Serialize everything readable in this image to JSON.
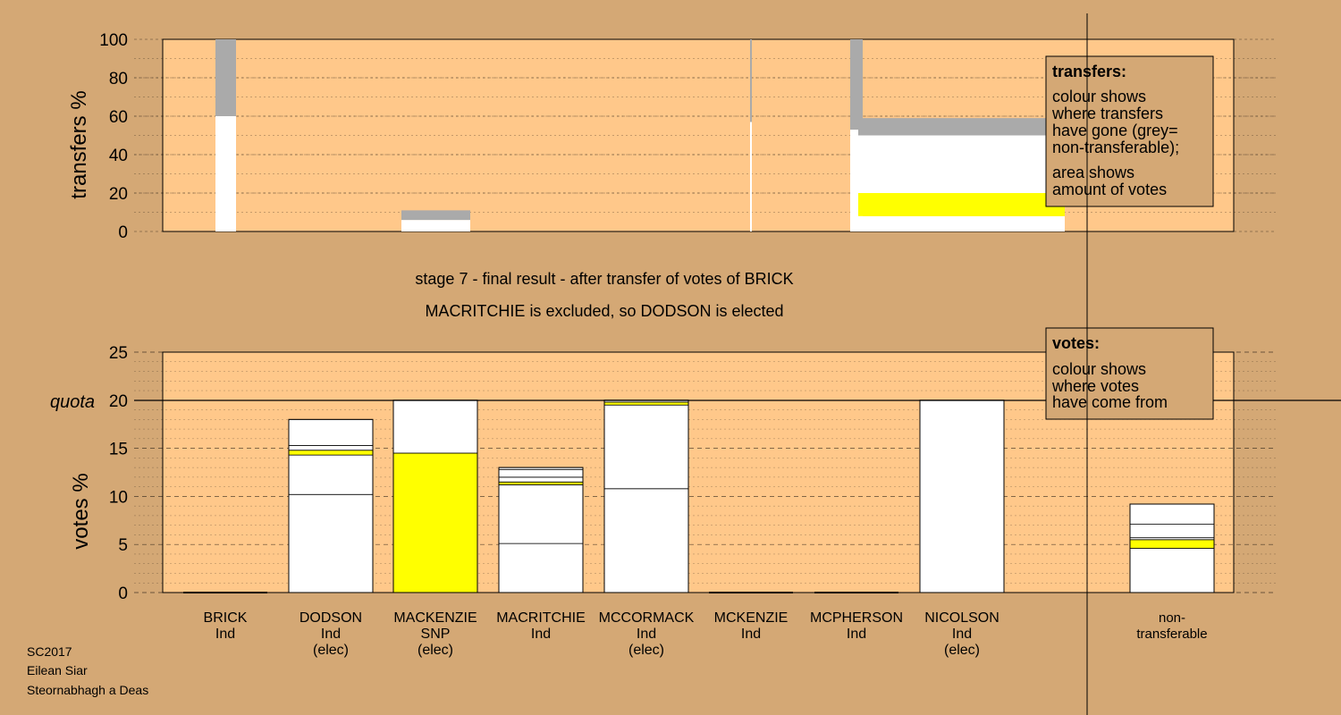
{
  "chart_data": [
    {
      "type": "bar",
      "panel": "transfers",
      "ylabel": "transfers %",
      "ylim": [
        0,
        100
      ],
      "yticks": [
        0,
        20,
        40,
        60,
        80,
        100
      ],
      "flows": [
        {
          "from": "BRICK",
          "to": "MCKENZIE",
          "direction": "out",
          "values": [
            [
              0,
              60,
              "white"
            ],
            [
              60,
              100,
              "grey"
            ]
          ]
        },
        {
          "from": "BRICK",
          "to": "MCKENZIE",
          "direction": "in",
          "values": [
            [
              0,
              6,
              "white"
            ],
            [
              6,
              11,
              "grey"
            ]
          ]
        },
        {
          "from": "MCPHERSON",
          "to": "MCPHERSON",
          "direction": "out",
          "values": [
            [
              0,
              57,
              "white"
            ],
            [
              57,
              100,
              "grey"
            ]
          ]
        },
        {
          "from": "NICOLSON",
          "to": "NICOLSON",
          "direction": "out",
          "values": [
            [
              0,
              53,
              "white"
            ],
            [
              53,
              100,
              "grey"
            ]
          ]
        },
        {
          "from": "NICOLSON",
          "to": "non-transferable",
          "direction": "in",
          "values": [
            [
              0,
              8,
              "white"
            ],
            [
              8,
              20,
              "yellow"
            ],
            [
              20,
              50,
              "white"
            ],
            [
              50,
              59,
              "grey"
            ]
          ]
        }
      ],
      "legend": {
        "title": "transfers:",
        "lines": [
          "colour shows",
          "where transfers",
          "have gone (grey=",
          "non-transferable);",
          "area shows",
          "amount of votes"
        ]
      }
    },
    {
      "type": "bar",
      "panel": "votes",
      "ylabel": "votes %",
      "ylim": [
        0,
        25
      ],
      "yticks": [
        0,
        5,
        10,
        15,
        20,
        25
      ],
      "quota": {
        "label": "quota",
        "value": 20
      },
      "categories": [
        {
          "name": "BRICK",
          "party": "Ind",
          "status": ""
        },
        {
          "name": "DODSON",
          "party": "Ind",
          "status": "(elec)"
        },
        {
          "name": "MACKENZIE",
          "party": "SNP",
          "status": "(elec)"
        },
        {
          "name": "MACRITCHIE",
          "party": "Ind",
          "status": ""
        },
        {
          "name": "MCCORMACK",
          "party": "Ind",
          "status": "(elec)"
        },
        {
          "name": "MCKENZIE",
          "party": "Ind",
          "status": ""
        },
        {
          "name": "MCPHERSON",
          "party": "Ind",
          "status": ""
        },
        {
          "name": "NICOLSON",
          "party": "Ind",
          "status": "(elec)"
        },
        {
          "name": "non-",
          "party": "transferable",
          "status": ""
        }
      ],
      "stacks": [
        [],
        [
          [
            0,
            10.2,
            "white"
          ],
          [
            10.2,
            14.3,
            "white"
          ],
          [
            14.3,
            14.8,
            "yellow"
          ],
          [
            14.8,
            15.3,
            "white"
          ],
          [
            15.3,
            18.0,
            "white"
          ]
        ],
        [
          [
            0,
            14.5,
            "yellow"
          ],
          [
            14.5,
            20.0,
            "white"
          ]
        ],
        [
          [
            0,
            5.1,
            "white"
          ],
          [
            5.1,
            11.2,
            "white"
          ],
          [
            11.2,
            11.5,
            "yellow"
          ],
          [
            11.5,
            12.0,
            "white"
          ],
          [
            12.0,
            12.8,
            "white"
          ],
          [
            12.8,
            13.0,
            "white"
          ]
        ],
        [
          [
            0,
            10.8,
            "white"
          ],
          [
            10.8,
            19.5,
            "white"
          ],
          [
            19.5,
            19.8,
            "yellow"
          ],
          [
            19.8,
            20.0,
            "white"
          ]
        ],
        [],
        [],
        [
          [
            0,
            20.0,
            "white"
          ]
        ],
        [
          [
            0,
            4.6,
            "white"
          ],
          [
            4.6,
            5.5,
            "yellow"
          ],
          [
            5.5,
            5.7,
            "white"
          ],
          [
            5.7,
            7.1,
            "white"
          ],
          [
            7.1,
            9.2,
            "white"
          ]
        ]
      ],
      "legend": {
        "title": "votes:",
        "lines": [
          "colour shows",
          "where votes",
          "have come from"
        ]
      }
    }
  ],
  "stage": {
    "line1": "stage 7 - final result - after transfer of votes of BRICK",
    "line2": "MACRITCHIE is excluded, so DODSON is elected"
  },
  "footer": [
    "SC2017",
    "Eilean Siar",
    "Steornabhagh a Deas"
  ],
  "colors": {
    "background": "#d4a875",
    "plot": "#ffc88a",
    "white": "#ffffff",
    "grey": "#aaaaaa",
    "yellow": "#ffff00",
    "outline": "#000000"
  }
}
